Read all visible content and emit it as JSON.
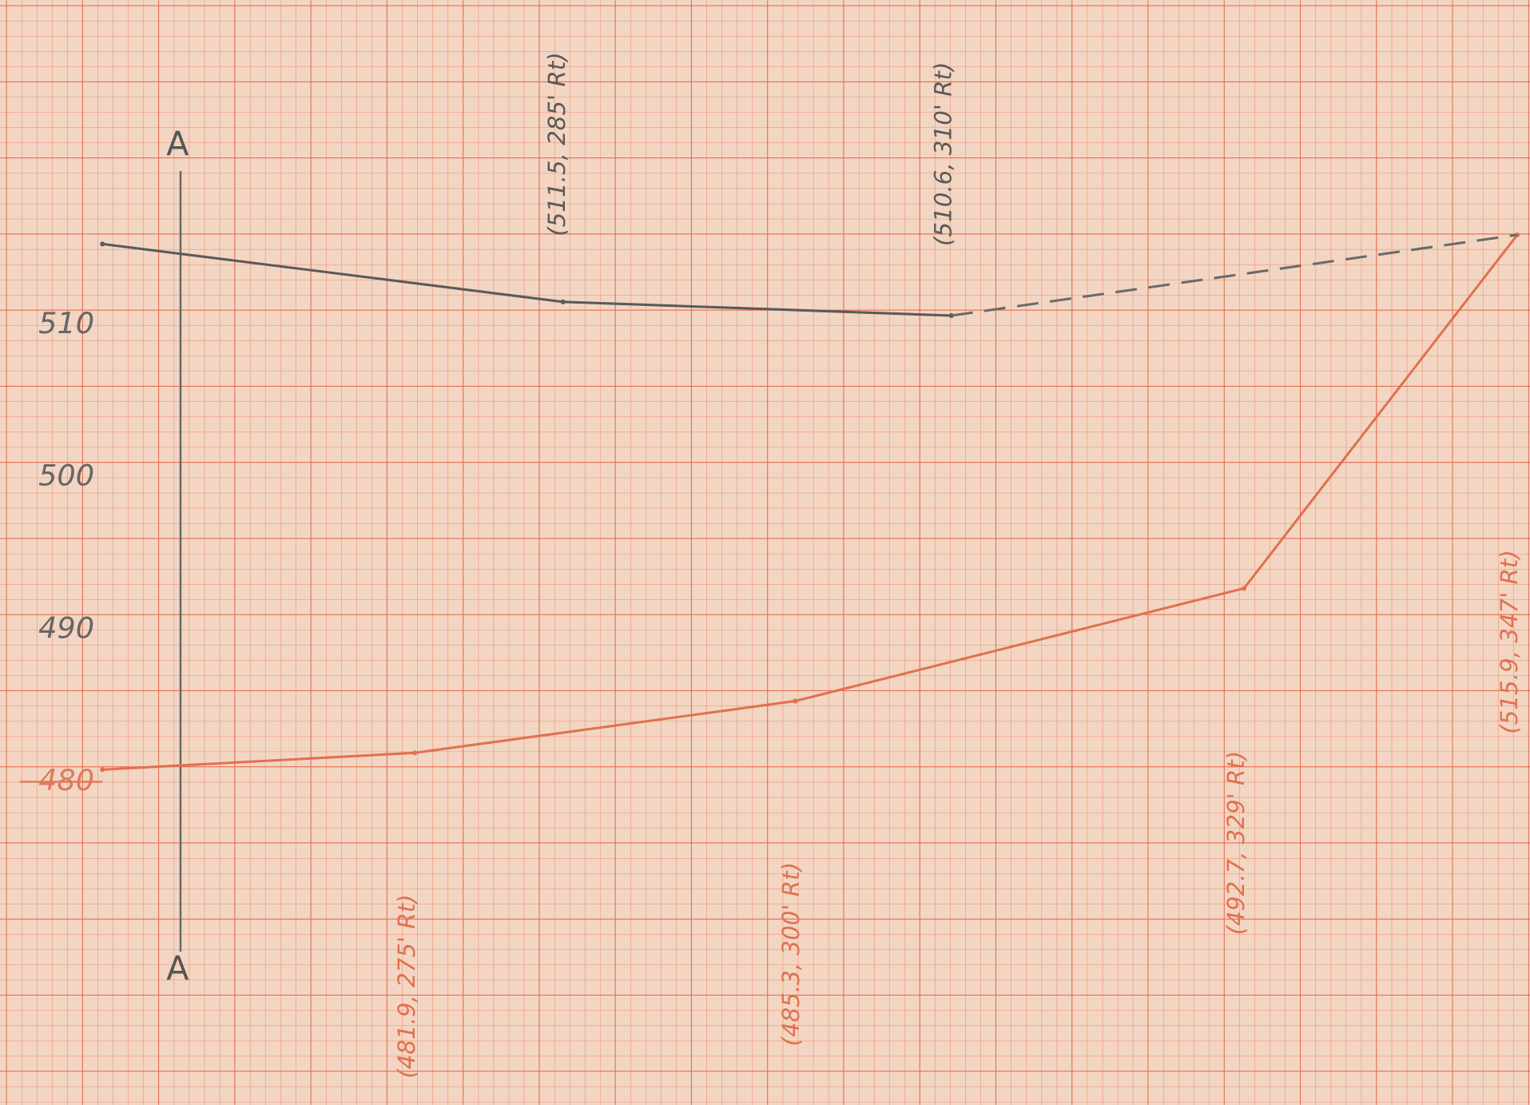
{
  "chart_data": {
    "type": "line",
    "ylim": [
      458.8,
      531.3
    ],
    "yticks": [
      480,
      490,
      500,
      510
    ],
    "annotations": [
      "A",
      "A"
    ],
    "series": [
      {
        "color": "#e0714f",
        "style": "solid",
        "values": [
          480.8,
          481.9,
          485.3,
          492.7,
          515.9
        ],
        "value_labels": [
          null,
          "(481.9, 275' Rt)",
          "(485.3, 300' Rt)",
          "(492.7, 329' Rt)",
          "(515.9, 347' Rt)"
        ]
      },
      {
        "color": "#5a5a5a",
        "style": "solid",
        "values": [
          515.3,
          511.5,
          510.6
        ],
        "value_labels": [
          null,
          "(511.5, 285' Rt)",
          "(510.6, 310' Rt)"
        ]
      },
      {
        "color": "#6a6a6a",
        "style": "dashed",
        "values": [
          510.6,
          515.9
        ]
      }
    ]
  }
}
